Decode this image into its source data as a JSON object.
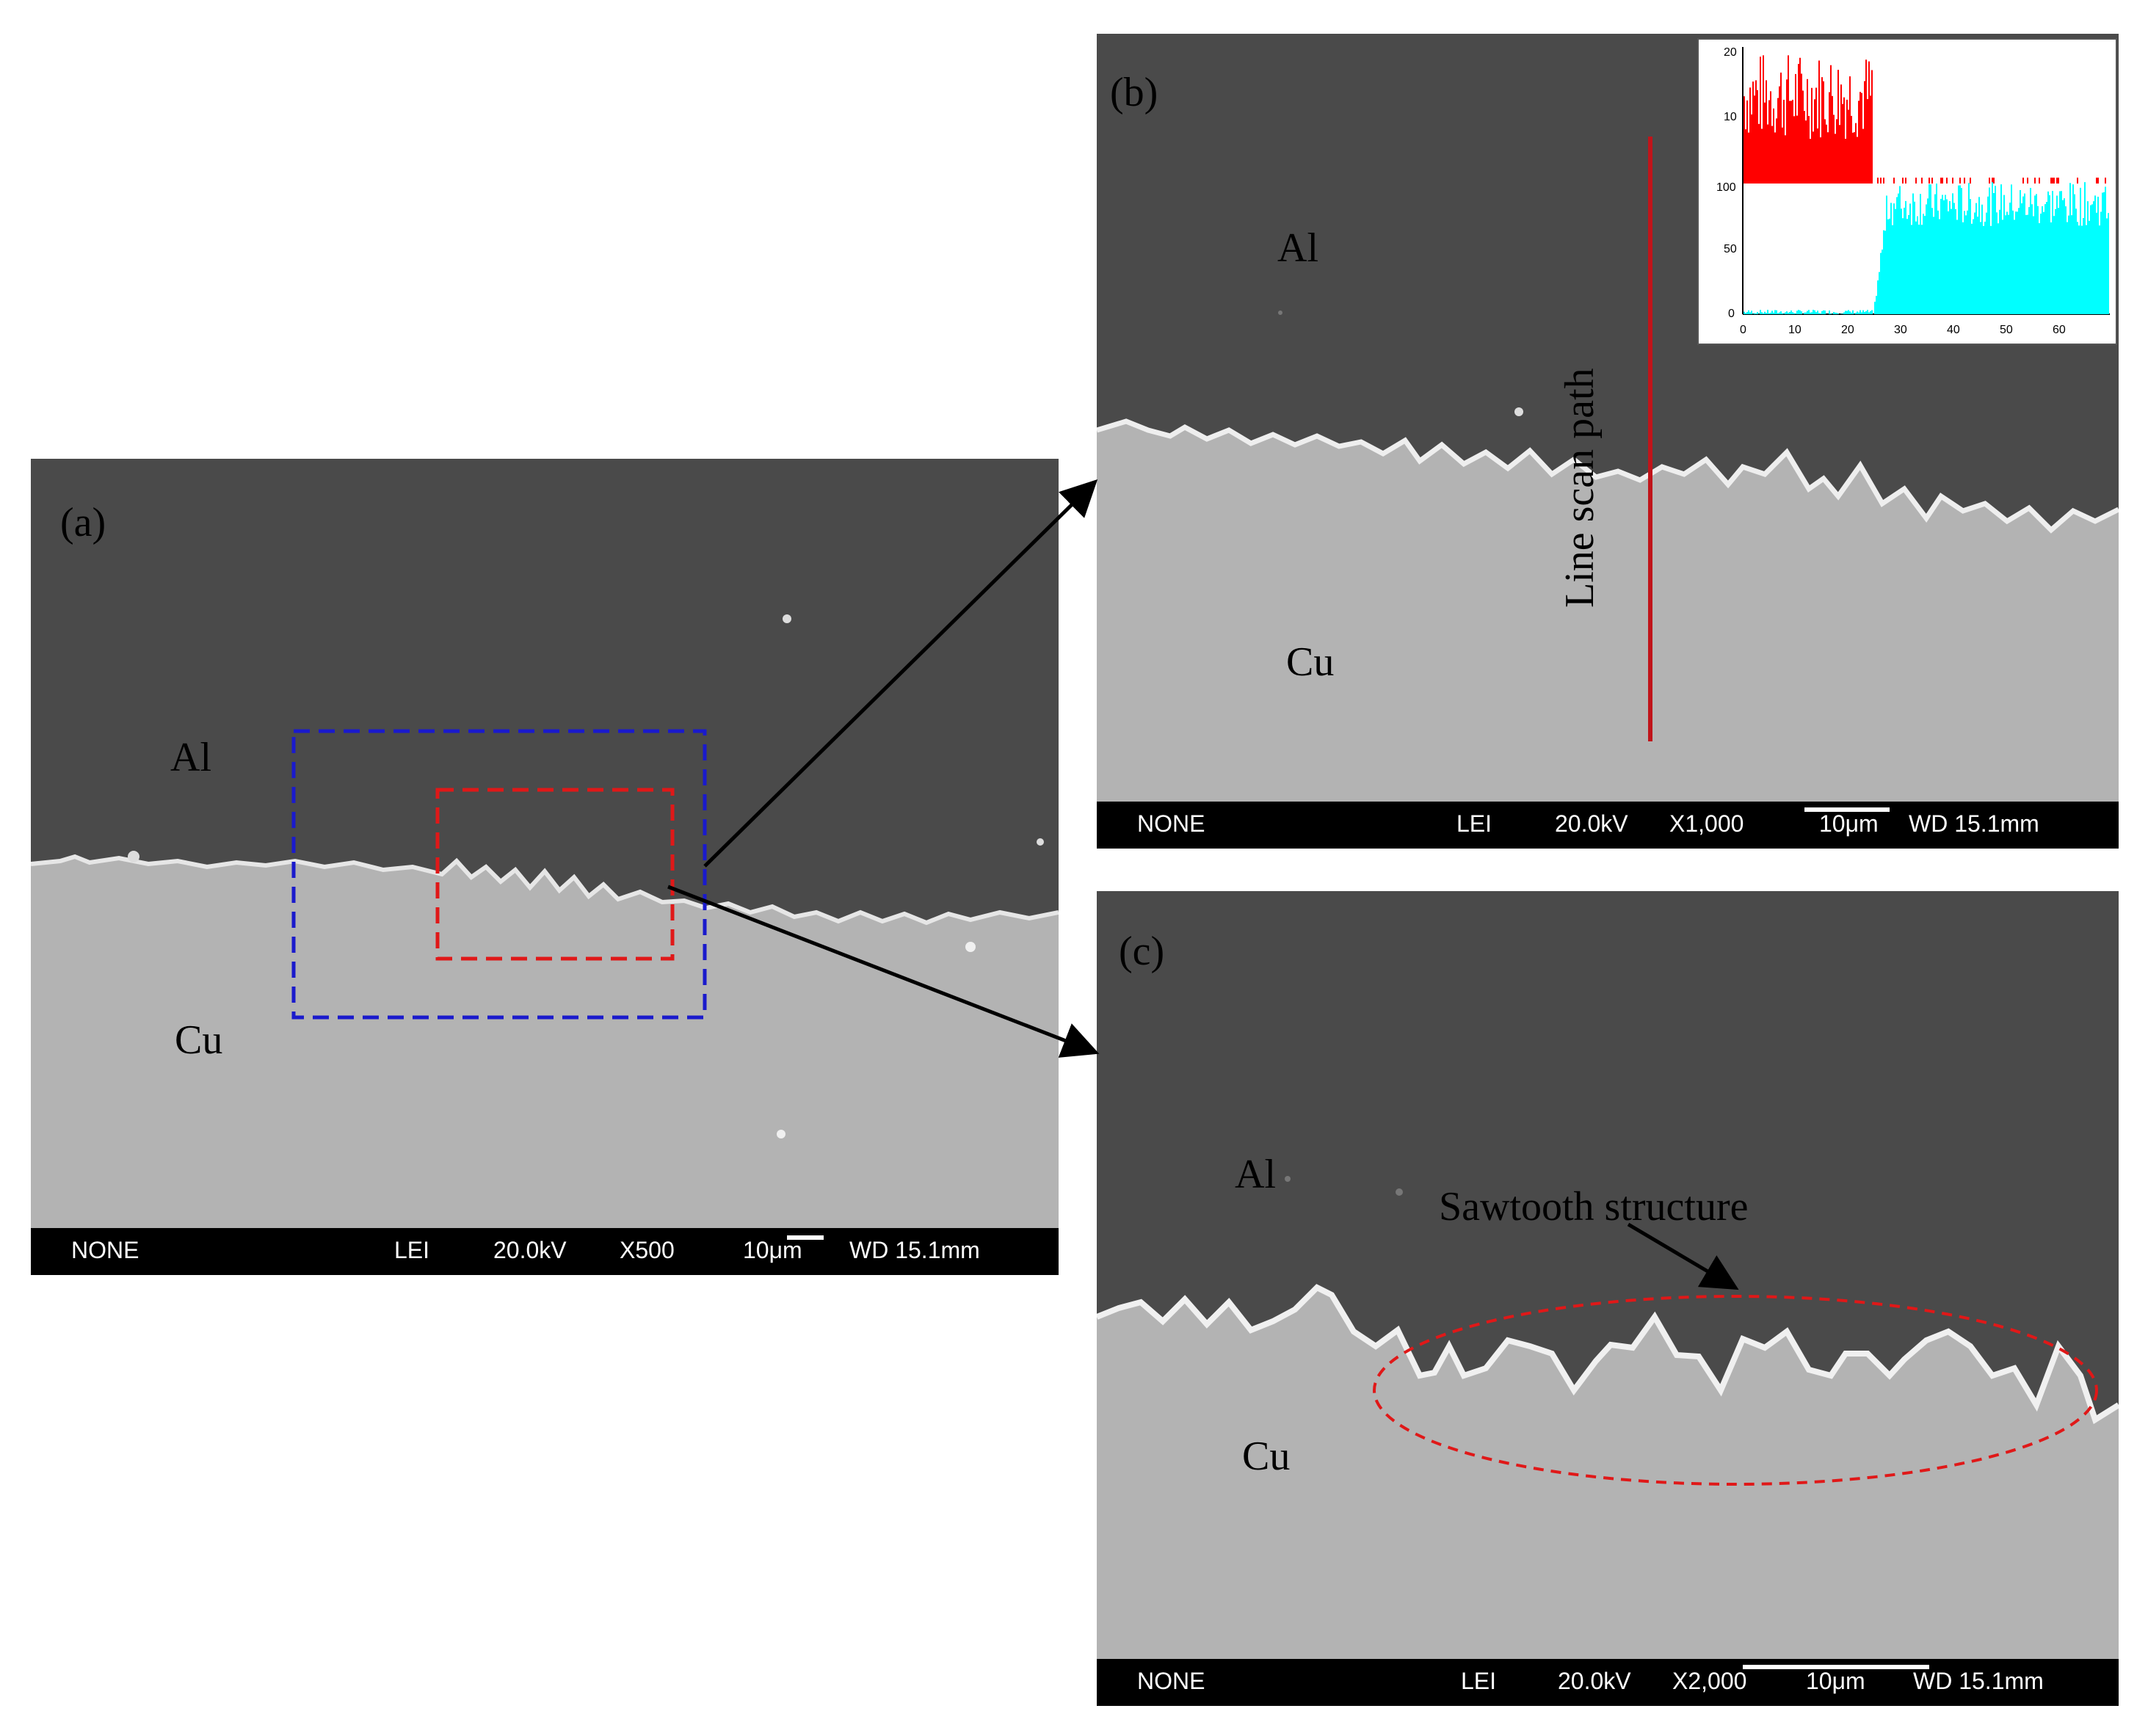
{
  "panels": {
    "a": {
      "label": "(a)",
      "al_label": "Al",
      "cu_label": "Cu",
      "databar": {
        "mode": "NONE",
        "detector": "LEI",
        "voltage": "20.0kV",
        "magnification": "X500",
        "scale": "10μm",
        "wd": "WD 15.1mm"
      }
    },
    "b": {
      "label": "(b)",
      "al_label": "Al",
      "cu_label": "Cu",
      "line_scan_label": "Line scan path",
      "databar": {
        "mode": "NONE",
        "detector": "LEI",
        "voltage": "20.0kV",
        "magnification": "X1,000",
        "scale": "10μm",
        "wd": "WD 15.1mm"
      },
      "inset": {
        "top_ticks": [
          "20",
          "10"
        ],
        "bottom_ticks": [
          "100",
          "50",
          "0"
        ],
        "x_ticks": [
          "0",
          "10",
          "20",
          "30",
          "40",
          "50",
          "60"
        ],
        "colors": {
          "top": "#ff0000",
          "bottom": "#00ffff"
        }
      }
    },
    "c": {
      "label": "(c)",
      "al_label": "Al",
      "cu_label": "Cu",
      "annotation": "Sawtooth structure",
      "databar": {
        "mode": "NONE",
        "detector": "LEI",
        "voltage": "20.0kV",
        "magnification": "X2,000",
        "scale": "10μm",
        "wd": "WD 15.1mm"
      }
    }
  },
  "colors": {
    "al_phase": "#4a4a4a",
    "cu_phase": "#b3b3b3",
    "blue_box": "#1a1acc",
    "red_box": "#e01818",
    "scan_line": "#c0141a"
  }
}
